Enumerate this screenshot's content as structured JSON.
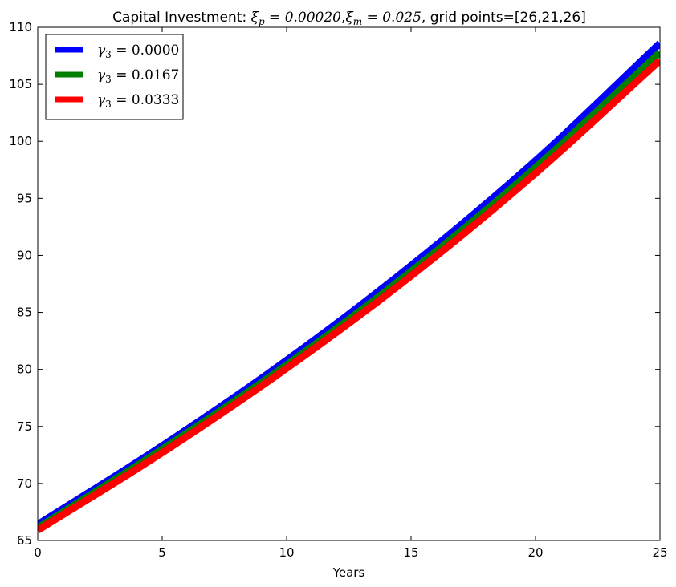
{
  "chart_data": {
    "type": "line",
    "title": "Capital Investment: ξp = 0.00020, ξm = 0.025, grid points=[26,21,26]",
    "title_parts": {
      "prefix": "Capital Investment: ",
      "xi_p": "ξ",
      "xi_p_sub": "p",
      "xi_p_val": " = 0.00020",
      "sep": ",",
      "xi_m": "ξ",
      "xi_m_sub": "m",
      "xi_m_val": " = 0.025",
      "suffix": ", grid points=[26,21,26]"
    },
    "xlabel": "Years",
    "ylabel": "",
    "xlim": [
      0,
      25
    ],
    "ylim": [
      65,
      110
    ],
    "xticks": [
      0,
      5,
      10,
      15,
      20,
      25
    ],
    "yticks": [
      65,
      70,
      75,
      80,
      85,
      90,
      95,
      100,
      105,
      110
    ],
    "grid": false,
    "legend_position": "top-left",
    "x": [
      0,
      5,
      10,
      15,
      20,
      25
    ],
    "series": [
      {
        "name": "γ3 = 0.0000",
        "label_main": "γ",
        "label_sub": "3",
        "label_val": " = 0.0000",
        "color": "#0000ff",
        "values": [
          66.4,
          73.3,
          80.8,
          89.1,
          98.3,
          108.6
        ]
      },
      {
        "name": "γ3 = 0.0167",
        "label_main": "γ",
        "label_sub": "3",
        "label_val": " = 0.0167",
        "color": "#008000",
        "values": [
          66.1,
          73.0,
          80.4,
          88.6,
          97.7,
          107.8
        ]
      },
      {
        "name": "γ3 = 0.0333",
        "label_main": "γ",
        "label_sub": "3",
        "label_val": " = 0.0333",
        "color": "#ff0000",
        "values": [
          65.9,
          72.7,
          80.1,
          88.2,
          97.2,
          107.1
        ]
      }
    ]
  }
}
